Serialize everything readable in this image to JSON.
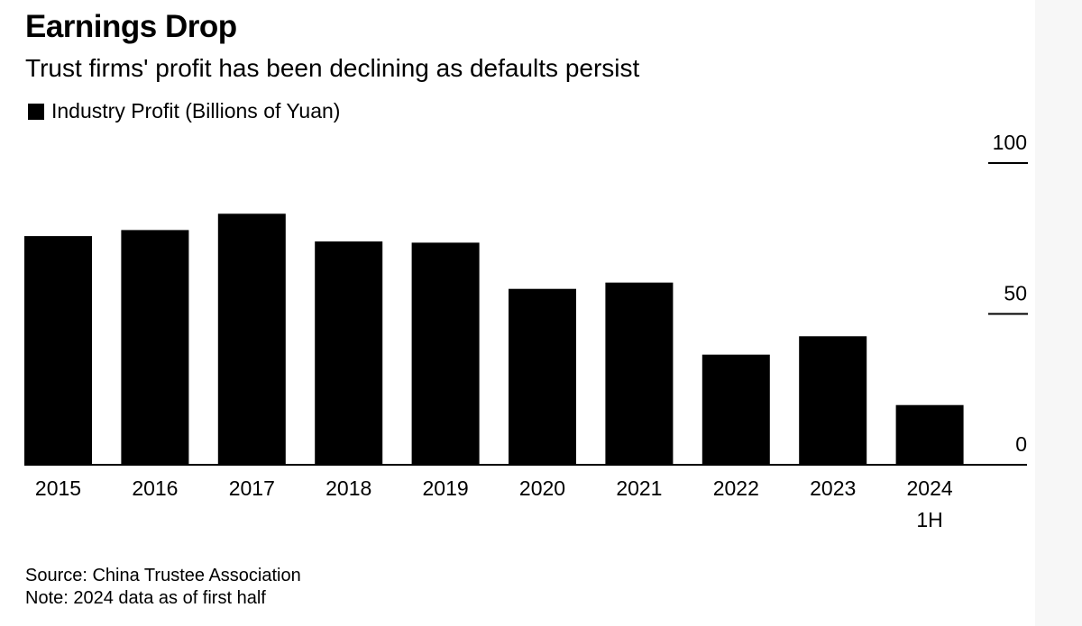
{
  "chart_data": {
    "type": "bar",
    "title": "Earnings Drop",
    "subtitle": "Trust firms' profit has been declining as defaults persist",
    "legend": [
      "Industry Profit (Billions of Yuan)"
    ],
    "categories": [
      "2015",
      "2016",
      "2017",
      "2018",
      "2019",
      "2020",
      "2021",
      "2022",
      "2023",
      "2024"
    ],
    "category_sublabels": [
      "",
      "",
      "",
      "",
      "",
      "",
      "",
      "",
      "",
      "1H"
    ],
    "values": [
      75.8,
      77.8,
      83.2,
      74.0,
      73.6,
      58.3,
      60.4,
      36.5,
      42.6,
      19.8
    ],
    "ylim": [
      0,
      100
    ],
    "yticks": [
      0,
      50,
      100
    ],
    "ytick_labels": [
      "0",
      "50",
      "100"
    ],
    "ylabel": "",
    "xlabel": "",
    "grid": false,
    "legend_position": "top-left",
    "yaxis_position": "right",
    "colors": {
      "bar": "#000000",
      "background": "#ffffff",
      "axis": "#000000"
    }
  },
  "footer": {
    "source": "Source: China Trustee Association",
    "note": "Note: 2024 data as of first half"
  }
}
